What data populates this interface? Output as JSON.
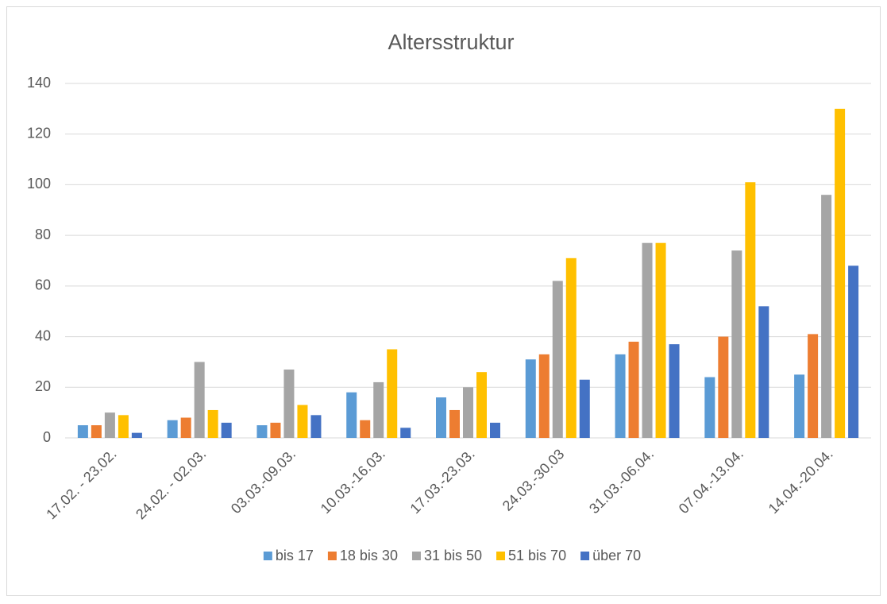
{
  "chart_data": {
    "type": "bar",
    "title": "Altersstruktur",
    "categories": [
      "17.02. - 23.02.",
      "24.02. - 02.03.",
      "03.03.-09.03.",
      "10.03.-16.03.",
      "17.03.-23.03.",
      "24.03.-30.03",
      "31.03.-06.04.",
      "07.04.-13.04.",
      "14.04.-20.04."
    ],
    "series": [
      {
        "name": "bis 17",
        "color": "#5b9bd5",
        "values": [
          5,
          7,
          5,
          18,
          16,
          31,
          33,
          24,
          25
        ]
      },
      {
        "name": "18 bis 30",
        "color": "#ed7d31",
        "values": [
          5,
          8,
          6,
          7,
          11,
          33,
          38,
          40,
          41
        ]
      },
      {
        "name": "31 bis 50",
        "color": "#a5a5a5",
        "values": [
          10,
          30,
          27,
          22,
          20,
          62,
          77,
          74,
          96
        ]
      },
      {
        "name": "51 bis 70",
        "color": "#ffc000",
        "values": [
          9,
          11,
          13,
          35,
          26,
          71,
          77,
          101,
          130
        ]
      },
      {
        "name": "über 70",
        "color": "#4472c4",
        "values": [
          2,
          6,
          9,
          4,
          6,
          23,
          37,
          52,
          68
        ]
      }
    ],
    "ylim": [
      0,
      140
    ],
    "yticks": [
      0,
      20,
      40,
      60,
      80,
      100,
      120,
      140
    ],
    "grid": true,
    "legend": "bottom"
  }
}
